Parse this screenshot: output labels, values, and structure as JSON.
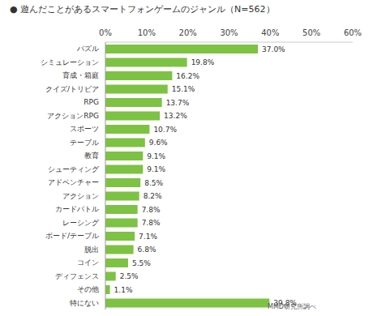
{
  "chart_data": {
    "type": "bar",
    "orientation": "horizontal",
    "title": "● 遊んだことがあるスマートフォンゲームのジャンル（N=562）",
    "categories": [
      "パズル",
      "シミュレーション",
      "育成・箱庭",
      "クイズ/トリビア",
      "RPG",
      "アクションRPG",
      "スポーツ",
      "テーブル",
      "教育",
      "シューティング",
      "アドベンチャー",
      "アクション",
      "カードバトル",
      "レーシング",
      "ボード/テーブル",
      "脱出",
      "コイン",
      "ディフェンス",
      "その他",
      "特にない"
    ],
    "values": [
      37.0,
      19.8,
      16.2,
      15.1,
      13.7,
      13.2,
      10.7,
      9.6,
      9.1,
      9.1,
      8.5,
      8.2,
      7.8,
      7.8,
      7.1,
      6.8,
      5.5,
      2.5,
      1.1,
      39.8
    ],
    "value_labels": [
      "37.0%",
      "19.8%",
      "16.2%",
      "15.1%",
      "13.7%",
      "13.2%",
      "10.7%",
      "9.6%",
      "9.1%",
      "9.1%",
      "8.5%",
      "8.2%",
      "7.8%",
      "7.8%",
      "7.1%",
      "6.8%",
      "5.5%",
      "2.5%",
      "1.1%",
      "39.8%"
    ],
    "data_labels": true,
    "color": "#7dc243",
    "xlim": [
      0,
      60
    ],
    "xticks": [
      {
        "value": 0,
        "label": "0%"
      },
      {
        "value": 10,
        "label": "10%"
      },
      {
        "value": 20,
        "label": "20%"
      },
      {
        "value": 30,
        "label": "30%"
      },
      {
        "value": 40,
        "label": "40%"
      },
      {
        "value": 50,
        "label": "50%"
      },
      {
        "value": 60,
        "label": "60%"
      }
    ],
    "grid": false,
    "source": "MMD研究所調べ"
  }
}
